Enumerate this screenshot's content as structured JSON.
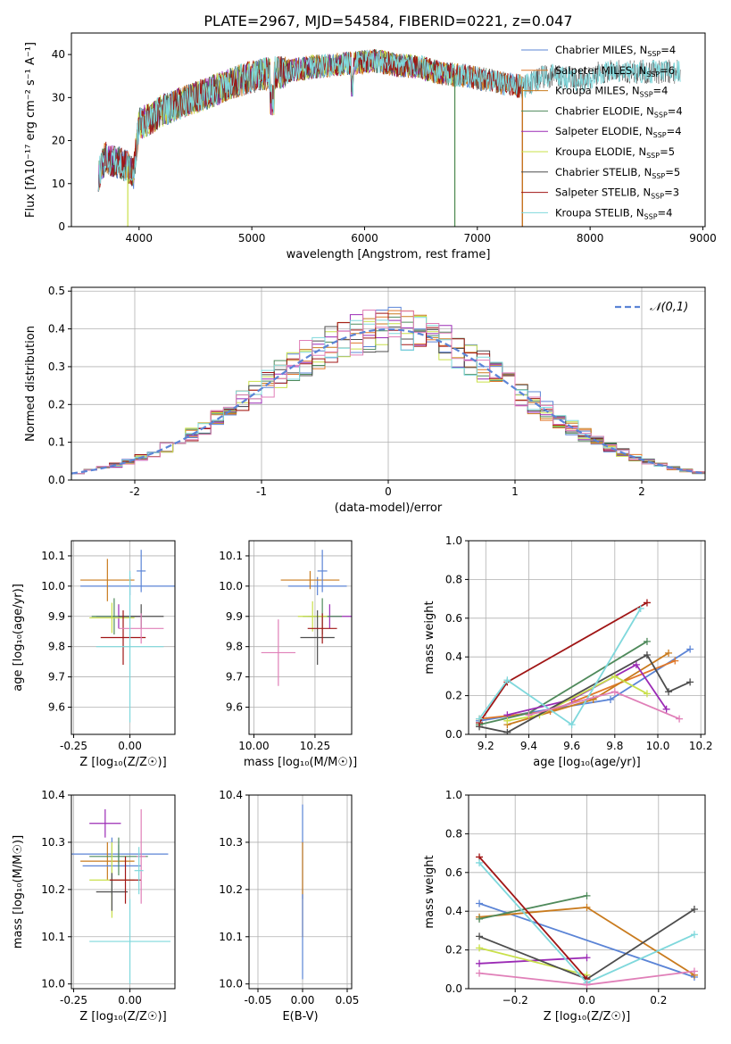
{
  "figure": {
    "title": "PLATE=2967, MJD=54584, FIBERID=0221, z=0.047"
  },
  "colors": {
    "Chabrier MILES": "#5b84d6",
    "Salpeter MILES": "#e0782a",
    "Kroupa MILES": "#c97b1e",
    "Chabrier ELODIE": "#4f8a5b",
    "Salpeter ELODIE": "#9b2bb5",
    "Kroupa ELODIE": "#c9e04a",
    "Chabrier STELIB": "#4d4d4d",
    "Salpeter STELIB": "#a01515",
    "Kroupa STELIB": "#7fd8dc",
    "pink": "#e07fb8",
    "normal": "#5b84d6"
  },
  "chart_data": [
    {
      "id": "spectrum",
      "type": "line",
      "xlabel": "wavelength [Angstrom, rest frame]",
      "ylabel": "Flux [fλ10⁻¹⁷ erg cm⁻² s⁻¹ A⁻¹]",
      "xlim": [
        3400,
        9020
      ],
      "ylim": [
        0,
        45
      ],
      "xticks": [
        4000,
        5000,
        6000,
        7000,
        8000,
        9000
      ],
      "yticks": [
        0,
        10,
        20,
        30,
        40
      ],
      "grid": false,
      "legend_position": "top-right",
      "continuum": {
        "x": [
          3640,
          3700,
          3800,
          3900,
          3950,
          4000,
          4100,
          4200,
          4300,
          4400,
          4500,
          4700,
          4900,
          5100,
          5300,
          5500,
          5700,
          5900,
          6100,
          6300,
          6500,
          6700,
          6900,
          7100,
          7300,
          7400,
          7500,
          7600,
          7700,
          7800,
          7900,
          8000,
          8100
        ],
        "y": [
          12,
          16,
          15,
          14,
          12,
          24,
          25,
          27,
          28,
          29,
          30,
          32,
          34,
          35.5,
          36,
          37,
          37.5,
          38,
          38.5,
          37.5,
          37,
          35.5,
          35,
          34,
          33,
          32.5,
          33.5,
          35,
          35,
          34.5,
          34,
          34.5,
          36
        ]
      },
      "series": [
        {
          "name": "Chabrier MILES, N_SSP=4",
          "extent": [
            3640,
            7400
          ]
        },
        {
          "name": "Salpeter MILES, N_SSP=6",
          "extent": [
            3640,
            7400
          ]
        },
        {
          "name": "Kroupa MILES, N_SSP=4",
          "extent": [
            3640,
            7400
          ]
        },
        {
          "name": "Chabrier ELODIE, N_SSP=4",
          "extent": [
            3640,
            6800
          ]
        },
        {
          "name": "Salpeter ELODIE, N_SSP=4",
          "extent": [
            3640,
            6800
          ]
        },
        {
          "name": "Kroupa ELODIE, N_SSP=5",
          "extent": [
            3900,
            6800
          ]
        },
        {
          "name": "Chabrier STELIB, N_SSP=5",
          "extent": [
            3640,
            8800
          ]
        },
        {
          "name": "Salpeter STELIB, N_SSP=3",
          "extent": [
            3640,
            7400
          ]
        },
        {
          "name": "Kroupa STELIB, N_SSP=4",
          "extent": [
            3640,
            8800
          ]
        }
      ]
    },
    {
      "id": "residuals",
      "type": "line",
      "xlabel": "(data-model)/error",
      "ylabel": "Normed distribution",
      "xlim": [
        -2.5,
        2.5
      ],
      "ylim": [
        0,
        0.51
      ],
      "xticks": [
        -2,
        -1,
        0,
        1,
        2
      ],
      "yticks": [
        0.0,
        0.1,
        0.2,
        0.3,
        0.4,
        0.5
      ],
      "grid": true,
      "legend_position": "top-right",
      "reference_curve": {
        "label": "𝒩(0,1)",
        "mean": 0,
        "sigma": 1
      },
      "bin_width": 0.1
    },
    {
      "id": "age_vs_z",
      "type": "scatter",
      "xlabel": "Z [log₁₀(Z/Z☉)]",
      "ylabel": "age  [log₁₀(age/yr)]",
      "xlim": [
        -0.26,
        0.2
      ],
      "ylim": [
        9.51,
        10.15
      ],
      "xticks": [
        -0.25,
        0.0
      ],
      "yticks": [
        9.6,
        9.7,
        9.8,
        9.9,
        10.0,
        10.1
      ],
      "grid": true,
      "errorbars": [
        {
          "x": 0.0,
          "y": 10.0,
          "xerr": 0.22,
          "yerr": 0.03
        },
        {
          "x": -0.1,
          "y": 10.02,
          "xerr": 0.12,
          "yerr": 0.07
        },
        {
          "x": 0.05,
          "y": 10.05,
          "xerr": 0.02,
          "yerr": 0.07
        },
        {
          "x": -0.05,
          "y": 9.9,
          "xerr": 0.1,
          "yerr": 0.04
        },
        {
          "x": -0.07,
          "y": 9.9,
          "xerr": 0.1,
          "yerr": 0.06
        },
        {
          "x": -0.08,
          "y": 9.895,
          "xerr": 0.1,
          "yerr": 0.05
        },
        {
          "x": 0.05,
          "y": 9.9,
          "xerr": 0.1,
          "yerr": 0.04
        },
        {
          "x": -0.03,
          "y": 9.83,
          "xerr": 0.1,
          "yerr": 0.09
        },
        {
          "x": 0.05,
          "y": 9.86,
          "xerr": 0.1,
          "yerr": 0.05
        },
        {
          "x": 0.0,
          "y": 9.8,
          "xerr": 0.15,
          "yerr": 0.25
        }
      ]
    },
    {
      "id": "age_vs_mass",
      "type": "scatter",
      "xlabel": "mass [log₁₀(M/M☉)]",
      "ylabel": "",
      "xlim": [
        9.98,
        10.4
      ],
      "ylim": [
        9.51,
        10.15
      ],
      "xticks": [
        10.0,
        10.25
      ],
      "yticks": [
        9.6,
        9.7,
        9.8,
        9.9,
        10.0,
        10.1
      ],
      "grid": true,
      "errorbars": [
        {
          "x": 10.26,
          "y": 10.0,
          "xerr": 0.12,
          "yerr": 0.03
        },
        {
          "x": 10.23,
          "y": 10.02,
          "xerr": 0.12,
          "yerr": 0.03
        },
        {
          "x": 10.28,
          "y": 10.05,
          "xerr": 0.02,
          "yerr": 0.07
        },
        {
          "x": 10.31,
          "y": 9.9,
          "xerr": 0.09,
          "yerr": 0.04
        },
        {
          "x": 10.28,
          "y": 9.9,
          "xerr": 0.08,
          "yerr": 0.06
        },
        {
          "x": 10.24,
          "y": 9.9,
          "xerr": 0.06,
          "yerr": 0.05
        },
        {
          "x": 10.26,
          "y": 9.83,
          "xerr": 0.07,
          "yerr": 0.09
        },
        {
          "x": 10.28,
          "y": 9.86,
          "xerr": 0.06,
          "yerr": 0.05
        },
        {
          "x": 10.1,
          "y": 9.78,
          "xerr": 0.07,
          "yerr": 0.11
        }
      ]
    },
    {
      "id": "weight_vs_age",
      "type": "line",
      "xlabel": "age  [log₁₀(age/yr)]",
      "ylabel": "mass weight",
      "xlim": [
        9.12,
        10.22
      ],
      "ylim": [
        0,
        1.0
      ],
      "xticks": [
        9.2,
        9.4,
        9.6,
        9.8,
        10.0,
        10.2
      ],
      "yticks": [
        0.0,
        0.2,
        0.4,
        0.6,
        0.8,
        1.0
      ],
      "grid": true,
      "series": [
        {
          "color": "Chabrier MILES",
          "x": [
            9.17,
            9.78,
            10.15
          ],
          "y": [
            0.07,
            0.18,
            0.44
          ]
        },
        {
          "color": "Salpeter MILES",
          "x": [
            9.17,
            9.5,
            10.08
          ],
          "y": [
            0.08,
            0.12,
            0.38
          ]
        },
        {
          "color": "Kroupa MILES",
          "x": [
            9.3,
            9.7,
            10.05
          ],
          "y": [
            0.05,
            0.18,
            0.42
          ]
        },
        {
          "color": "Chabrier ELODIE",
          "x": [
            9.17,
            9.4,
            9.95
          ],
          "y": [
            0.05,
            0.11,
            0.48
          ]
        },
        {
          "color": "Salpeter ELODIE",
          "x": [
            9.3,
            9.6,
            9.9,
            10.04
          ],
          "y": [
            0.1,
            0.18,
            0.36,
            0.13
          ]
        },
        {
          "color": "Kroupa ELODIE",
          "x": [
            9.3,
            9.45,
            9.8,
            9.95
          ],
          "y": [
            0.07,
            0.1,
            0.3,
            0.21
          ]
        },
        {
          "color": "Chabrier STELIB",
          "x": [
            9.17,
            9.3,
            9.95,
            10.05,
            10.15
          ],
          "y": [
            0.04,
            0.01,
            0.41,
            0.22,
            0.27
          ]
        },
        {
          "color": "Salpeter STELIB",
          "x": [
            9.17,
            9.3,
            9.95
          ],
          "y": [
            0.06,
            0.27,
            0.68
          ]
        },
        {
          "color": "Kroupa STELIB",
          "x": [
            9.17,
            9.3,
            9.6,
            9.92
          ],
          "y": [
            0.08,
            0.28,
            0.05,
            0.65
          ]
        },
        {
          "color": "pink",
          "x": [
            9.4,
            9.8,
            10.1
          ],
          "y": [
            0.1,
            0.22,
            0.08
          ]
        }
      ]
    },
    {
      "id": "mass_vs_z",
      "type": "scatter",
      "xlabel": "Z [log₁₀(Z/Z☉)]",
      "ylabel": "mass [log₁₀(M/M☉)]",
      "xlim": [
        -0.26,
        0.2
      ],
      "ylim": [
        9.99,
        10.4
      ],
      "xticks": [
        -0.25,
        0.0
      ],
      "yticks": [
        10.0,
        10.1,
        10.2,
        10.3,
        10.4
      ],
      "grid": true,
      "errorbars": [
        {
          "x": -0.05,
          "y": 10.275,
          "xerr": 0.22,
          "yerr": 0.02
        },
        {
          "x": -0.1,
          "y": 10.26,
          "xerr": 0.12,
          "yerr": 0.04
        },
        {
          "x": -0.08,
          "y": 10.25,
          "xerr": 0.13,
          "yerr": 0.06
        },
        {
          "x": -0.11,
          "y": 10.34,
          "xerr": 0.07,
          "yerr": 0.03
        },
        {
          "x": -0.05,
          "y": 10.27,
          "xerr": 0.13,
          "yerr": 0.04
        },
        {
          "x": -0.08,
          "y": 10.22,
          "xerr": 0.1,
          "yerr": 0.08
        },
        {
          "x": -0.08,
          "y": 10.195,
          "xerr": 0.07,
          "yerr": 0.04
        },
        {
          "x": -0.02,
          "y": 10.22,
          "xerr": 0.07,
          "yerr": 0.05
        },
        {
          "x": 0.05,
          "y": 10.27,
          "xerr": 0.02,
          "yerr": 0.1
        },
        {
          "x": 0.04,
          "y": 10.24,
          "xerr": 0.02,
          "yerr": 0.05
        },
        {
          "x": 0.0,
          "y": 10.09,
          "xerr": 0.18,
          "yerr": 0.09
        }
      ]
    },
    {
      "id": "mass_vs_ebv",
      "type": "scatter",
      "xlabel": "E(B-V)",
      "ylabel": "",
      "xlim": [
        -0.06,
        0.055
      ],
      "ylim": [
        9.99,
        10.4
      ],
      "xticks": [
        -0.05,
        0.0,
        0.05
      ],
      "yticks": [
        10.0,
        10.1,
        10.2,
        10.3,
        10.4
      ],
      "grid": true,
      "errorbars": [
        {
          "x": 0.0,
          "y": 10.28,
          "xerr": 0.0,
          "yerr": 0.1
        },
        {
          "x": 0.0,
          "y": 10.2,
          "xerr": 0.0,
          "yerr": 0.1
        },
        {
          "x": 0.0,
          "y": 10.1,
          "xerr": 0.0,
          "yerr": 0.09
        }
      ]
    },
    {
      "id": "weight_vs_z",
      "type": "line",
      "xlabel": "Z [log₁₀(Z/Z☉)]",
      "ylabel": "mass weight",
      "xlim": [
        -0.33,
        0.33
      ],
      "ylim": [
        0,
        1.0
      ],
      "xticks": [
        -0.2,
        0.0,
        0.2
      ],
      "yticks": [
        0.0,
        0.2,
        0.4,
        0.6,
        0.8,
        1.0
      ],
      "grid": true,
      "series": [
        {
          "color": "Chabrier MILES",
          "x": [
            -0.3,
            0.3
          ],
          "y": [
            0.44,
            0.06
          ]
        },
        {
          "color": "Kroupa MILES",
          "x": [
            -0.3,
            0.0,
            0.3
          ],
          "y": [
            0.37,
            0.42,
            0.07
          ]
        },
        {
          "color": "Chabrier ELODIE",
          "x": [
            -0.3,
            0.0
          ],
          "y": [
            0.36,
            0.48
          ]
        },
        {
          "color": "Salpeter ELODIE",
          "x": [
            -0.3,
            0.0
          ],
          "y": [
            0.13,
            0.16
          ]
        },
        {
          "color": "Kroupa ELODIE",
          "x": [
            -0.3,
            0.0
          ],
          "y": [
            0.21,
            0.07
          ]
        },
        {
          "color": "Chabrier STELIB",
          "x": [
            -0.3,
            0.0,
            0.3
          ],
          "y": [
            0.27,
            0.05,
            0.41
          ]
        },
        {
          "color": "Salpeter STELIB",
          "x": [
            -0.3,
            0.0
          ],
          "y": [
            0.68,
            0.05
          ]
        },
        {
          "color": "Kroupa STELIB",
          "x": [
            -0.3,
            0.0,
            0.3
          ],
          "y": [
            0.65,
            0.03,
            0.28
          ]
        },
        {
          "color": "pink",
          "x": [
            -0.3,
            0.0,
            0.3
          ],
          "y": [
            0.08,
            0.02,
            0.09
          ]
        }
      ]
    }
  ]
}
